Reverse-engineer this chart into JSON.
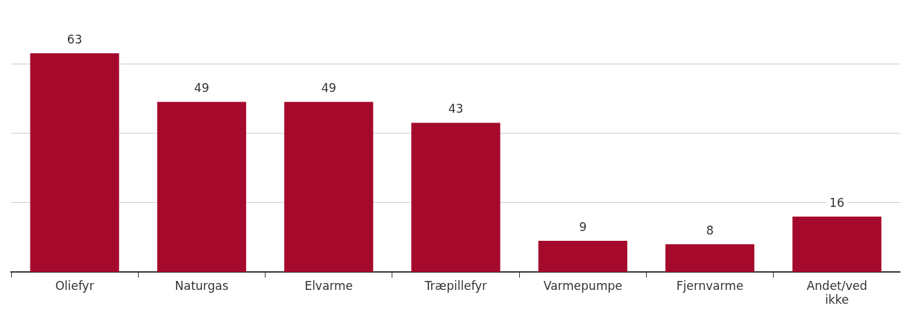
{
  "chart_data": {
    "type": "bar",
    "categories": [
      "Oliefyr",
      "Naturgas",
      "Elvarme",
      "Træpillefyr",
      "Varmepumpe",
      "Fjernvarme",
      "Andet/ved ikke"
    ],
    "values": [
      63,
      49,
      49,
      43,
      9,
      8,
      16
    ],
    "color": "#a50a2d",
    "yticks": [
      {
        "value": 20,
        "label": null
      },
      {
        "value": 40,
        "label": null
      },
      {
        "value": 60,
        "label": null
      }
    ],
    "grid": "y",
    "tick_labels": "x",
    "data_labels": true,
    "legend": false
  }
}
